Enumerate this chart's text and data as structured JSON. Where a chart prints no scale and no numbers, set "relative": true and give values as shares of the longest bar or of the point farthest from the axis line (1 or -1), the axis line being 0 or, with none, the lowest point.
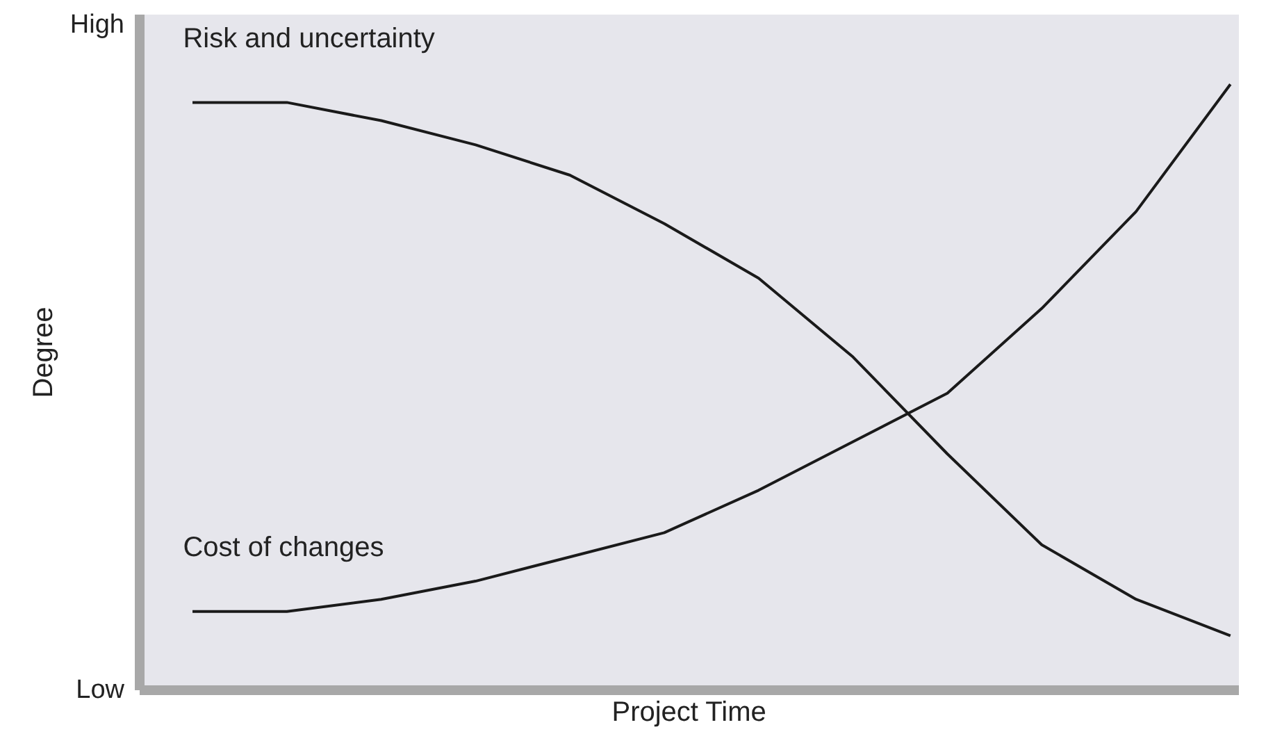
{
  "chart_data": {
    "type": "line",
    "relative": true,
    "xlabel": "Project Time",
    "ylabel": "Degree",
    "categories": [
      null,
      null,
      null,
      null,
      null,
      null,
      null,
      null,
      null,
      null,
      null,
      null
    ],
    "series": [
      {
        "name": "Risk and uncertainty",
        "color": "#1a1a1a",
        "values": [
          0.97,
          0.97,
          0.94,
          0.9,
          0.85,
          0.77,
          0.68,
          0.55,
          0.39,
          0.24,
          0.15,
          0.09
        ]
      },
      {
        "name": "Cost of changes",
        "color": "#1a1a1a",
        "values": [
          0.13,
          0.13,
          0.15,
          0.18,
          0.22,
          0.26,
          0.33,
          0.41,
          0.49,
          0.63,
          0.79,
          1.0
        ]
      }
    ],
    "annotations": [
      "High",
      "Low"
    ],
    "marker": "none",
    "line_style": "solid"
  }
}
